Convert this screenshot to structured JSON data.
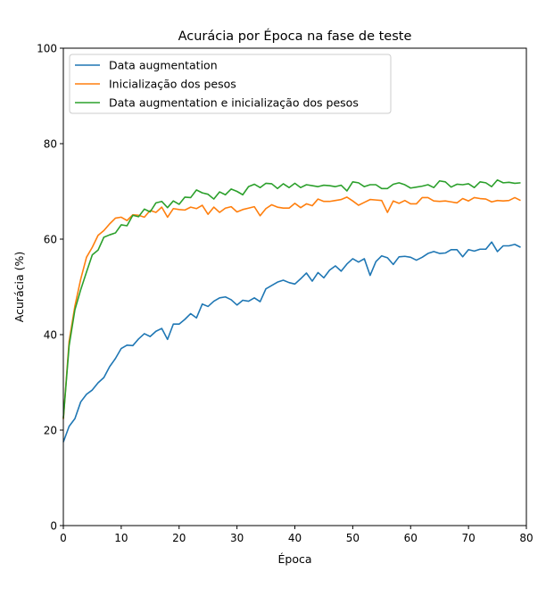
{
  "chart_data": {
    "type": "line",
    "title": "Acurácia por Época na fase de teste",
    "xlabel": "Época",
    "ylabel": "Acurácia (%)",
    "xlim": [
      0,
      80
    ],
    "ylim": [
      0,
      100
    ],
    "xticks": [
      0,
      10,
      20,
      30,
      40,
      50,
      60,
      70,
      80
    ],
    "yticks": [
      0,
      20,
      40,
      60,
      80,
      100
    ],
    "grid": false,
    "legend_position": "upper-left",
    "x": [
      0,
      1,
      2,
      3,
      4,
      5,
      6,
      7,
      8,
      9,
      10,
      11,
      12,
      13,
      14,
      15,
      16,
      17,
      18,
      19,
      20,
      21,
      22,
      23,
      24,
      25,
      26,
      27,
      28,
      29,
      30,
      31,
      32,
      33,
      34,
      35,
      36,
      37,
      38,
      39,
      40,
      41,
      42,
      43,
      44,
      45,
      46,
      47,
      48,
      49,
      50,
      51,
      52,
      53,
      54,
      55,
      56,
      57,
      58,
      59,
      60,
      61,
      62,
      63,
      64,
      65,
      66,
      67,
      68,
      69,
      70,
      71,
      72,
      73,
      74,
      75,
      76,
      77,
      78,
      79
    ],
    "series": [
      {
        "name": "Data augmentation",
        "color": "#1f77b4",
        "values": [
          17.5,
          20.8,
          22.4,
          25.9,
          27.5,
          28.4,
          29.9,
          31.0,
          33.3,
          35.0,
          37.1,
          37.8,
          37.7,
          39.1,
          40.2,
          39.6,
          40.7,
          41.3,
          39.0,
          42.2,
          42.2,
          43.2,
          44.4,
          43.5,
          46.4,
          45.9,
          47.0,
          47.7,
          47.9,
          47.3,
          46.2,
          47.2,
          47.0,
          47.7,
          46.9,
          49.6,
          50.3,
          51.0,
          51.4,
          50.9,
          50.6,
          51.7,
          52.9,
          51.2,
          53.0,
          51.9,
          53.5,
          54.4,
          53.3,
          54.8,
          55.9,
          55.2,
          55.9,
          52.4,
          55.3,
          56.5,
          56.1,
          54.7,
          56.3,
          56.4,
          56.2,
          55.6,
          56.2,
          57.0,
          57.4,
          57.0,
          57.1,
          57.8,
          57.8,
          56.3,
          57.8,
          57.5,
          57.9,
          57.9,
          59.4,
          57.4,
          58.6,
          58.6,
          58.9,
          58.3
        ]
      },
      {
        "name": "Inicialização dos pesos",
        "color": "#ff7f0e",
        "values": [
          22.3,
          38.6,
          46.0,
          51.6,
          56.2,
          58.3,
          60.8,
          61.8,
          63.2,
          64.4,
          64.6,
          63.9,
          65.1,
          65.0,
          64.6,
          66.0,
          65.6,
          66.7,
          64.6,
          66.4,
          66.2,
          66.1,
          66.7,
          66.4,
          67.1,
          65.2,
          66.7,
          65.6,
          66.5,
          66.8,
          65.7,
          66.2,
          66.5,
          66.8,
          64.9,
          66.4,
          67.2,
          66.7,
          66.5,
          66.5,
          67.5,
          66.6,
          67.4,
          67.0,
          68.4,
          67.9,
          67.9,
          68.1,
          68.3,
          68.8,
          68.0,
          67.1,
          67.7,
          68.3,
          68.2,
          68.1,
          65.6,
          68.0,
          67.5,
          68.1,
          67.4,
          67.4,
          68.7,
          68.7,
          68.0,
          67.9,
          68.0,
          67.8,
          67.6,
          68.5,
          68.0,
          68.7,
          68.5,
          68.4,
          67.8,
          68.1,
          68.0,
          68.1,
          68.7,
          68.1
        ]
      },
      {
        "name": "Data augmentation e inicialização dos pesos",
        "color": "#2ca02c",
        "values": [
          22.5,
          37.7,
          45.2,
          49.4,
          53.1,
          56.7,
          57.7,
          60.4,
          60.9,
          61.3,
          63.0,
          62.8,
          65.0,
          64.7,
          66.3,
          65.7,
          67.6,
          67.9,
          66.6,
          68.0,
          67.3,
          68.8,
          68.7,
          70.3,
          69.7,
          69.4,
          68.4,
          69.9,
          69.3,
          70.5,
          70.0,
          69.3,
          71.0,
          71.5,
          70.8,
          71.7,
          71.6,
          70.6,
          71.6,
          70.8,
          71.7,
          70.8,
          71.4,
          71.2,
          71.0,
          71.3,
          71.2,
          71.0,
          71.3,
          70.1,
          72.0,
          71.8,
          71.0,
          71.4,
          71.4,
          70.6,
          70.6,
          71.5,
          71.8,
          71.4,
          70.7,
          70.9,
          71.1,
          71.4,
          70.8,
          72.2,
          72.0,
          70.9,
          71.5,
          71.4,
          71.6,
          70.8,
          72.0,
          71.8,
          71.0,
          72.4,
          71.8,
          71.9,
          71.7,
          71.8
        ]
      }
    ]
  }
}
